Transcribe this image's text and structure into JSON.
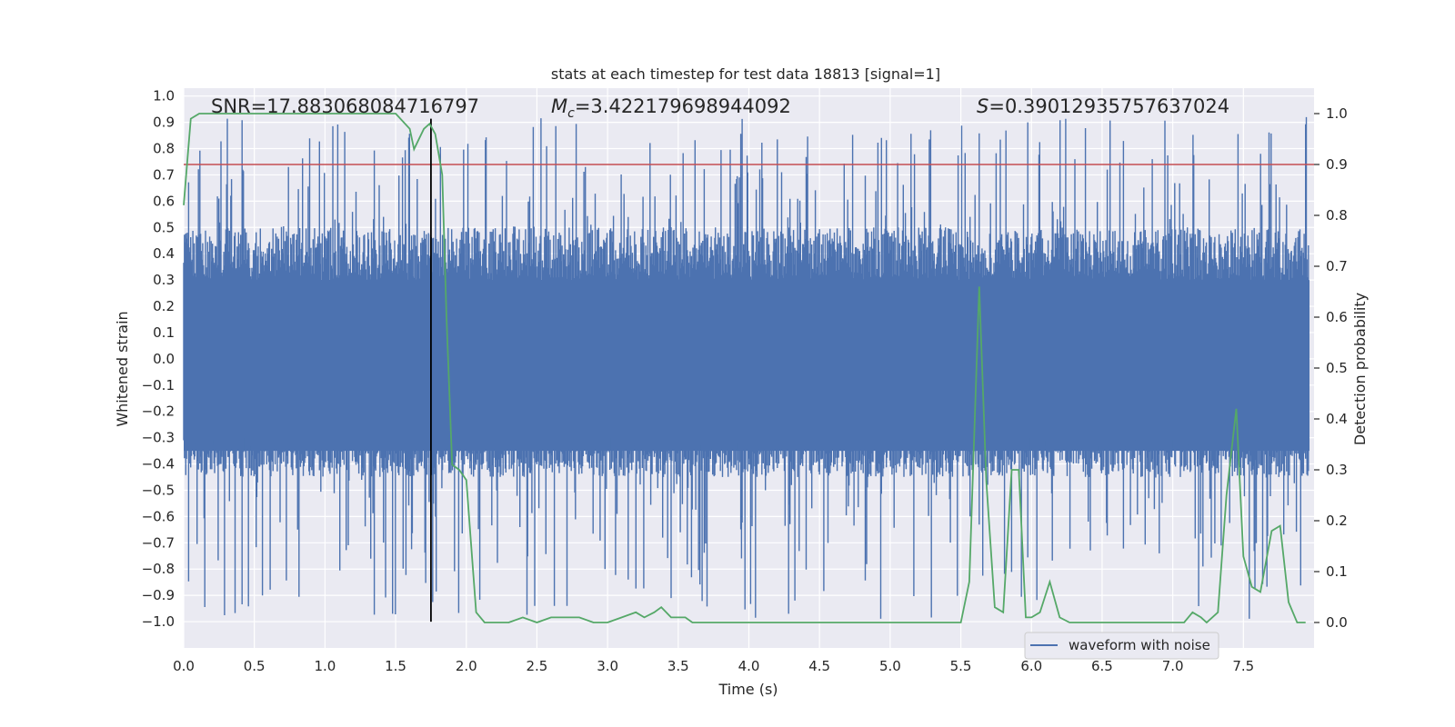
{
  "chart_data": {
    "type": "line",
    "title": "stats at each timestep for test data 18813 [signal=1]",
    "xlabel": "Time (s)",
    "ylabel_left": "Whitened strain",
    "ylabel_right": "Detection probability",
    "xlim": [
      0.0,
      8.0
    ],
    "ylim_left": [
      -1.1,
      1.03
    ],
    "ylim_right": [
      -0.05,
      1.05
    ],
    "xticks": [
      0.0,
      0.5,
      1.0,
      1.5,
      2.0,
      2.5,
      3.0,
      3.5,
      4.0,
      4.5,
      5.0,
      5.5,
      6.0,
      6.5,
      7.0,
      7.5
    ],
    "xtick_labels": [
      "0.0",
      "0.5",
      "1.0",
      "1.5",
      "2.0",
      "2.5",
      "3.0",
      "3.5",
      "4.0",
      "4.5",
      "5.0",
      "5.5",
      "6.0",
      "6.5",
      "7.0",
      "7.5"
    ],
    "yticks_left": [
      1.0,
      0.9,
      0.8,
      0.7,
      0.6,
      0.5,
      0.4,
      0.3,
      0.2,
      0.1,
      0.0,
      -0.1,
      -0.2,
      -0.3,
      -0.4,
      -0.5,
      -0.6,
      -0.7,
      -0.8,
      -0.9,
      -1.0
    ],
    "ytick_labels_left": [
      "1.0",
      "0.9",
      "0.8",
      "0.7",
      "0.6",
      "0.5",
      "0.4",
      "0.3",
      "0.2",
      "0.1",
      "0.0",
      "−0.1",
      "−0.2",
      "−0.3",
      "−0.4",
      "−0.5",
      "−0.6",
      "−0.7",
      "−0.8",
      "−0.9",
      "−1.0"
    ],
    "yticks_right": [
      1.0,
      0.9,
      0.8,
      0.7,
      0.6,
      0.5,
      0.4,
      0.3,
      0.2,
      0.1,
      0.0
    ],
    "ytick_labels_right": [
      "1.0",
      "0.9",
      "0.8",
      "0.7",
      "0.6",
      "0.5",
      "0.4",
      "0.3",
      "0.2",
      "0.1",
      "0.0"
    ],
    "annotations": {
      "snr": "SNR=17.883068084716797",
      "mc_symbol": "M",
      "mc_subscript": "c",
      "mc_value": "=3.422179698944092",
      "s_symbol": "S",
      "s_value": "=0.39012935757637024"
    },
    "threshold_right": 0.9,
    "marker_time": 1.75,
    "waveform": {
      "name": "waveform with noise",
      "color": "#4c72b0",
      "n_samples": 1600,
      "band_low": -0.35,
      "band_high": 0.3,
      "peak_up_max": 0.92,
      "peak_down_min": -0.99
    },
    "detection_probability": {
      "name": "detection probability",
      "color": "#55a868",
      "x": [
        0.0,
        0.05,
        0.11,
        0.2,
        0.4,
        0.6,
        0.8,
        1.0,
        1.2,
        1.4,
        1.5,
        1.6,
        1.63,
        1.7,
        1.74,
        1.78,
        1.83,
        1.86,
        1.9,
        1.95,
        2.0,
        2.07,
        2.13,
        2.2,
        2.3,
        2.4,
        2.5,
        2.6,
        2.7,
        2.8,
        2.9,
        3.0,
        3.1,
        3.2,
        3.26,
        3.33,
        3.38,
        3.45,
        3.5,
        3.55,
        3.6,
        3.7,
        3.8,
        4.0,
        4.2,
        4.4,
        4.6,
        4.8,
        4.9,
        5.0,
        5.2,
        5.4,
        5.5,
        5.56,
        5.63,
        5.68,
        5.74,
        5.8,
        5.86,
        5.91,
        5.96,
        6.0,
        6.06,
        6.13,
        6.2,
        6.27,
        6.33,
        6.4,
        6.6,
        6.8,
        7.0,
        7.08,
        7.14,
        7.2,
        7.24,
        7.32,
        7.38,
        7.45,
        7.5,
        7.56,
        7.62,
        7.7,
        7.76,
        7.82,
        7.88,
        7.94
      ],
      "y": [
        0.82,
        0.99,
        1.0,
        1.0,
        1.0,
        1.0,
        1.0,
        1.0,
        1.0,
        1.0,
        1.0,
        0.97,
        0.93,
        0.97,
        0.98,
        0.96,
        0.88,
        0.6,
        0.31,
        0.3,
        0.28,
        0.02,
        0.0,
        0.0,
        0.0,
        0.01,
        0.0,
        0.01,
        0.01,
        0.01,
        0.0,
        0.0,
        0.01,
        0.02,
        0.01,
        0.02,
        0.03,
        0.01,
        0.01,
        0.01,
        0.0,
        0.0,
        0.0,
        0.0,
        0.0,
        0.0,
        0.0,
        0.0,
        0.0,
        0.0,
        0.0,
        0.0,
        0.0,
        0.08,
        0.66,
        0.28,
        0.03,
        0.02,
        0.3,
        0.3,
        0.01,
        0.01,
        0.02,
        0.08,
        0.01,
        0.0,
        0.0,
        0.0,
        0.0,
        0.0,
        0.0,
        0.0,
        0.02,
        0.01,
        0.0,
        0.02,
        0.25,
        0.42,
        0.13,
        0.07,
        0.06,
        0.18,
        0.19,
        0.04,
        0.0,
        0.0
      ]
    },
    "threshold_color": "#c44e52",
    "marker_color": "#000000",
    "legend": {
      "label": "waveform with noise",
      "location": "lower-right"
    },
    "grid": true
  }
}
